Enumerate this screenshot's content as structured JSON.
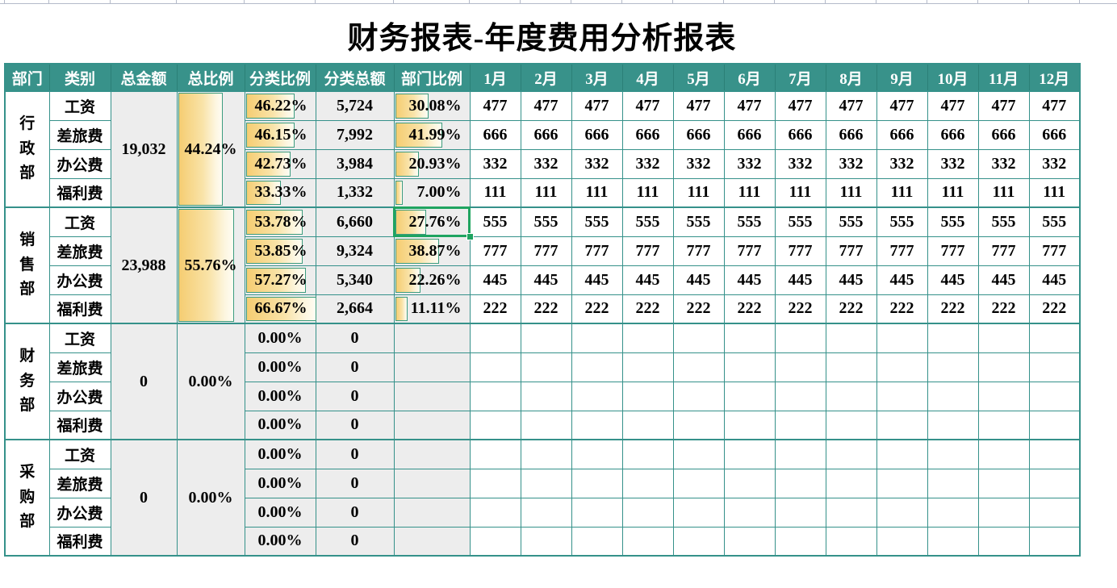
{
  "title": "财务报表-年度费用分析报表",
  "colors": {
    "header_bg": "#38928a",
    "grid_border": "#35918a",
    "gray_cell": "#ededed",
    "bar_gold": "#f5cd72",
    "bar_border": "#3d9c7e",
    "selection_green": "#1fa460",
    "top_gridline": "#b4bac9"
  },
  "table": {
    "headers": [
      "部门",
      "类别",
      "总金额",
      "总比例",
      "分类比例",
      "分类总额",
      "部门比例",
      "1月",
      "2月",
      "3月",
      "4月",
      "5月",
      "6月",
      "7月",
      "8月",
      "9月",
      "10月",
      "11月",
      "12月"
    ],
    "bar_scale_max": 66.67,
    "departments": [
      {
        "name": "行政部",
        "total_amount": "19,032",
        "total_pct": "44.24%",
        "total_pct_value": 44.24,
        "rows": [
          {
            "category": "工资",
            "cat_pct": "46.22%",
            "cat_pct_value": 46.22,
            "cat_total": "5,724",
            "dept_pct": "30.08%",
            "dept_pct_value": 30.08,
            "selected": false,
            "months": [
              "477",
              "477",
              "477",
              "477",
              "477",
              "477",
              "477",
              "477",
              "477",
              "477",
              "477",
              "477"
            ]
          },
          {
            "category": "差旅费",
            "cat_pct": "46.15%",
            "cat_pct_value": 46.15,
            "cat_total": "7,992",
            "dept_pct": "41.99%",
            "dept_pct_value": 41.99,
            "selected": false,
            "months": [
              "666",
              "666",
              "666",
              "666",
              "666",
              "666",
              "666",
              "666",
              "666",
              "666",
              "666",
              "666"
            ]
          },
          {
            "category": "办公费",
            "cat_pct": "42.73%",
            "cat_pct_value": 42.73,
            "cat_total": "3,984",
            "dept_pct": "20.93%",
            "dept_pct_value": 20.93,
            "selected": false,
            "months": [
              "332",
              "332",
              "332",
              "332",
              "332",
              "332",
              "332",
              "332",
              "332",
              "332",
              "332",
              "332"
            ]
          },
          {
            "category": "福利费",
            "cat_pct": "33.33%",
            "cat_pct_value": 33.33,
            "cat_total": "1,332",
            "dept_pct": "7.00%",
            "dept_pct_value": 7.0,
            "selected": false,
            "months": [
              "111",
              "111",
              "111",
              "111",
              "111",
              "111",
              "111",
              "111",
              "111",
              "111",
              "111",
              "111"
            ]
          }
        ]
      },
      {
        "name": "销售部",
        "total_amount": "23,988",
        "total_pct": "55.76%",
        "total_pct_value": 55.76,
        "rows": [
          {
            "category": "工资",
            "cat_pct": "53.78%",
            "cat_pct_value": 53.78,
            "cat_total": "6,660",
            "dept_pct": "27.76%",
            "dept_pct_value": 27.76,
            "selected": true,
            "months": [
              "555",
              "555",
              "555",
              "555",
              "555",
              "555",
              "555",
              "555",
              "555",
              "555",
              "555",
              "555"
            ]
          },
          {
            "category": "差旅费",
            "cat_pct": "53.85%",
            "cat_pct_value": 53.85,
            "cat_total": "9,324",
            "dept_pct": "38.87%",
            "dept_pct_value": 38.87,
            "selected": false,
            "months": [
              "777",
              "777",
              "777",
              "777",
              "777",
              "777",
              "777",
              "777",
              "777",
              "777",
              "777",
              "777"
            ]
          },
          {
            "category": "办公费",
            "cat_pct": "57.27%",
            "cat_pct_value": 57.27,
            "cat_total": "5,340",
            "dept_pct": "22.26%",
            "dept_pct_value": 22.26,
            "selected": false,
            "months": [
              "445",
              "445",
              "445",
              "445",
              "445",
              "445",
              "445",
              "445",
              "445",
              "445",
              "445",
              "445"
            ]
          },
          {
            "category": "福利费",
            "cat_pct": "66.67%",
            "cat_pct_value": 66.67,
            "cat_total": "2,664",
            "dept_pct": "11.11%",
            "dept_pct_value": 11.11,
            "selected": false,
            "months": [
              "222",
              "222",
              "222",
              "222",
              "222",
              "222",
              "222",
              "222",
              "222",
              "222",
              "222",
              "222"
            ]
          }
        ]
      },
      {
        "name": "财务部",
        "total_amount": "0",
        "total_pct": "0.00%",
        "total_pct_value": 0,
        "rows": [
          {
            "category": "工资",
            "cat_pct": "0.00%",
            "cat_pct_value": 0,
            "cat_total": "0",
            "dept_pct": "",
            "dept_pct_value": 0,
            "selected": false,
            "months": [
              "",
              "",
              "",
              "",
              "",
              "",
              "",
              "",
              "",
              "",
              "",
              ""
            ]
          },
          {
            "category": "差旅费",
            "cat_pct": "0.00%",
            "cat_pct_value": 0,
            "cat_total": "0",
            "dept_pct": "",
            "dept_pct_value": 0,
            "selected": false,
            "months": [
              "",
              "",
              "",
              "",
              "",
              "",
              "",
              "",
              "",
              "",
              "",
              ""
            ]
          },
          {
            "category": "办公费",
            "cat_pct": "0.00%",
            "cat_pct_value": 0,
            "cat_total": "0",
            "dept_pct": "",
            "dept_pct_value": 0,
            "selected": false,
            "months": [
              "",
              "",
              "",
              "",
              "",
              "",
              "",
              "",
              "",
              "",
              "",
              ""
            ]
          },
          {
            "category": "福利费",
            "cat_pct": "0.00%",
            "cat_pct_value": 0,
            "cat_total": "0",
            "dept_pct": "",
            "dept_pct_value": 0,
            "selected": false,
            "months": [
              "",
              "",
              "",
              "",
              "",
              "",
              "",
              "",
              "",
              "",
              "",
              ""
            ]
          }
        ]
      },
      {
        "name": "采购部",
        "total_amount": "0",
        "total_pct": "0.00%",
        "total_pct_value": 0,
        "rows": [
          {
            "category": "工资",
            "cat_pct": "0.00%",
            "cat_pct_value": 0,
            "cat_total": "0",
            "dept_pct": "",
            "dept_pct_value": 0,
            "selected": false,
            "months": [
              "",
              "",
              "",
              "",
              "",
              "",
              "",
              "",
              "",
              "",
              "",
              ""
            ]
          },
          {
            "category": "差旅费",
            "cat_pct": "0.00%",
            "cat_pct_value": 0,
            "cat_total": "0",
            "dept_pct": "",
            "dept_pct_value": 0,
            "selected": false,
            "months": [
              "",
              "",
              "",
              "",
              "",
              "",
              "",
              "",
              "",
              "",
              "",
              ""
            ]
          },
          {
            "category": "办公费",
            "cat_pct": "0.00%",
            "cat_pct_value": 0,
            "cat_total": "0",
            "dept_pct": "",
            "dept_pct_value": 0,
            "selected": false,
            "months": [
              "",
              "",
              "",
              "",
              "",
              "",
              "",
              "",
              "",
              "",
              "",
              ""
            ]
          },
          {
            "category": "福利费",
            "cat_pct": "0.00%",
            "cat_pct_value": 0,
            "cat_total": "0",
            "dept_pct": "",
            "dept_pct_value": 0,
            "selected": false,
            "months": [
              "",
              "",
              "",
              "",
              "",
              "",
              "",
              "",
              "",
              "",
              "",
              ""
            ]
          }
        ]
      }
    ]
  },
  "selection": {
    "department": "销售部",
    "category": "工资",
    "column": "部门比例",
    "value": "27.76%"
  }
}
